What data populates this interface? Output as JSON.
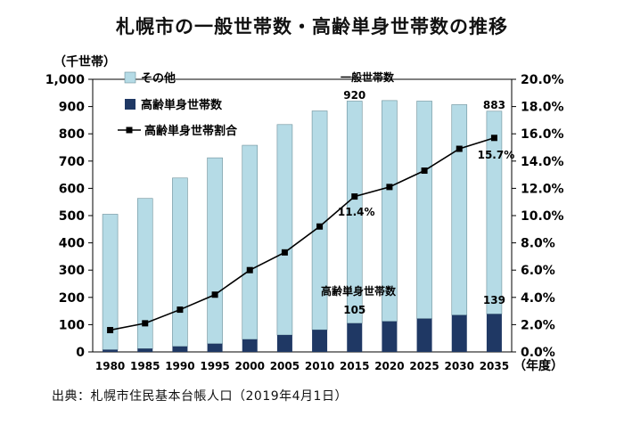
{
  "chart_data": {
    "type": "bar",
    "title": "札幌市の一般世帯数・高齢単身世帯数の推移",
    "categories": [
      "1980",
      "1985",
      "1990",
      "1995",
      "2000",
      "2005",
      "2010",
      "2015",
      "2020",
      "2025",
      "2030",
      "2035"
    ],
    "y_left_unit": "（千世帯）",
    "x_unit": "（年度）",
    "ylim_left": [
      0,
      1000
    ],
    "ylim_right": [
      0,
      20
    ],
    "left_ticks": [
      "0",
      "100",
      "200",
      "300",
      "400",
      "500",
      "600",
      "700",
      "800",
      "900",
      "1,000"
    ],
    "right_ticks": [
      "0.0%",
      "2.0%",
      "4.0%",
      "6.0%",
      "8.0%",
      "10.0%",
      "12.0%",
      "14.0%",
      "16.0%",
      "18.0%",
      "20.0%"
    ],
    "total_households": [
      505,
      563,
      638,
      712,
      758,
      834,
      884,
      920,
      922,
      920,
      907,
      883
    ],
    "series": [
      {
        "name": "高齢単身世帯数",
        "values": [
          8,
          12,
          20,
          30,
          46,
          62,
          81,
          105,
          112,
          122,
          135,
          139
        ],
        "color": "#1f3864"
      },
      {
        "name": "その他",
        "values": [
          497,
          551,
          618,
          682,
          712,
          772,
          803,
          815,
          810,
          798,
          772,
          744
        ],
        "color": "#b5dbe6"
      },
      {
        "name": "高齢単身世帯割合",
        "values": [
          1.6,
          2.1,
          3.1,
          4.2,
          6.0,
          7.3,
          9.2,
          11.4,
          12.1,
          13.3,
          14.9,
          15.7
        ],
        "axis": "right",
        "color": "#000000"
      }
    ],
    "legend": [
      "その他",
      "高齢単身世帯数",
      "高齢単身世帯割合"
    ],
    "annotations": {
      "general_label": "一般世帯数",
      "general_2015": "920",
      "general_2035": "883",
      "elderly_label": "高齢単身世帯数",
      "elderly_2015": "105",
      "elderly_2035": "139",
      "ratio_2015": "11.4%",
      "ratio_2035": "15.7%"
    },
    "source": "出典：札幌市住民基本台帳人口（2019年4月1日）"
  }
}
